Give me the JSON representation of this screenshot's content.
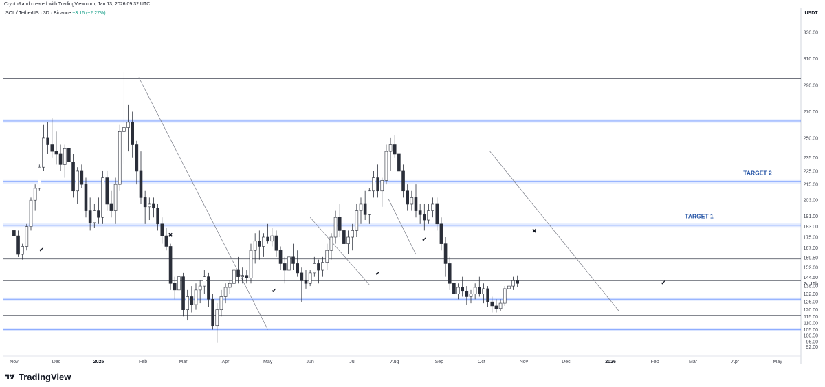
{
  "header": {
    "credit": "CryptoRand created with TradingView.com, Jan 13, 2026 09:32 UTC",
    "symbol": "SOL / TetherUS · 3D · Binance",
    "change": "+3.16 (+2.27%)"
  },
  "brand": {
    "name": "TradingView",
    "logo_icon": "tradingview-logo-icon"
  },
  "colors": {
    "up": "#ffffff",
    "down": "#2a2e39",
    "wick": "#2a2e39",
    "zone": "#2962ff",
    "target_text": "#1e4fa3",
    "grid": "#f0f3fa"
  },
  "chart_data": {
    "type": "candlestick",
    "currency_label": "USDT",
    "ylim": [
      86,
      340
    ],
    "price_ticks": [
      "330.00",
      "310.00",
      "290.00",
      "270.00",
      "250.00",
      "235.00",
      "225.00",
      "215.00",
      "203.00",
      "191.00",
      "183.00",
      "175.00",
      "167.00",
      "159.50",
      "152.00",
      "144.50",
      "138.00",
      "132.00",
      "126.00",
      "120.00",
      "115.00",
      "110.00",
      "105.00",
      "100.50",
      "96.00",
      "92.00"
    ],
    "last_price_label": "2d 15h",
    "x_labels": [
      {
        "label": "Nov",
        "t": 0
      },
      {
        "label": "Dec",
        "t": 10
      },
      {
        "label": "2025",
        "t": 20,
        "bold": true
      },
      {
        "label": "Feb",
        "t": 30.5
      },
      {
        "label": "Mar",
        "t": 40
      },
      {
        "label": "Apr",
        "t": 50
      },
      {
        "label": "May",
        "t": 60
      },
      {
        "label": "Jun",
        "t": 70
      },
      {
        "label": "Jul",
        "t": 80
      },
      {
        "label": "Aug",
        "t": 90
      },
      {
        "label": "Sep",
        "t": 100.5
      },
      {
        "label": "Oct",
        "t": 110.5
      },
      {
        "label": "Nov",
        "t": 120.5
      },
      {
        "label": "Dec",
        "t": 130.5
      },
      {
        "label": "2026",
        "t": 141,
        "bold": true
      },
      {
        "label": "Feb",
        "t": 151.5
      },
      {
        "label": "Mar",
        "t": 160.5
      },
      {
        "label": "Apr",
        "t": 170.5
      },
      {
        "label": "May",
        "t": 180.5
      }
    ],
    "horizontal_lines": [
      295,
      158.5,
      142,
      116
    ],
    "zones": [
      {
        "price": 263,
        "label": ""
      },
      {
        "price": 217,
        "label": "TARGET 2"
      },
      {
        "price": 184,
        "label": "TARGET 1"
      },
      {
        "price": 128,
        "label": ""
      },
      {
        "price": 105,
        "label": ""
      }
    ],
    "trendlines": [
      {
        "t1": 29.5,
        "p1": 296,
        "t2": 60,
        "p2": 105
      },
      {
        "t1": 70,
        "p1": 190,
        "t2": 84,
        "p2": 139
      },
      {
        "t1": 88.5,
        "p1": 204,
        "t2": 95,
        "p2": 162
      },
      {
        "t1": 112.5,
        "p1": 240,
        "t2": 143,
        "p2": 119
      }
    ],
    "markers": [
      {
        "t": 6.5,
        "p": 164,
        "symbol": "check"
      },
      {
        "t": 37,
        "p": 175,
        "symbol": "cross"
      },
      {
        "t": 61.5,
        "p": 133,
        "symbol": "check"
      },
      {
        "t": 86,
        "p": 146,
        "symbol": "check"
      },
      {
        "t": 97,
        "p": 172,
        "symbol": "check"
      },
      {
        "t": 123,
        "p": 178,
        "symbol": "cross"
      },
      {
        "t": 153.5,
        "p": 139,
        "symbol": "check"
      }
    ],
    "candles": [
      [
        180,
        186,
        172,
        176
      ],
      [
        176,
        180,
        160,
        162
      ],
      [
        162,
        170,
        158,
        168
      ],
      [
        168,
        185,
        165,
        183
      ],
      [
        183,
        205,
        180,
        203
      ],
      [
        203,
        215,
        195,
        212
      ],
      [
        212,
        230,
        210,
        228
      ],
      [
        228,
        260,
        225,
        250
      ],
      [
        250,
        262,
        238,
        245
      ],
      [
        245,
        265,
        235,
        240
      ],
      [
        240,
        255,
        230,
        238
      ],
      [
        238,
        245,
        225,
        230
      ],
      [
        230,
        245,
        220,
        242
      ],
      [
        242,
        250,
        228,
        232
      ],
      [
        232,
        238,
        205,
        210
      ],
      [
        210,
        228,
        200,
        225
      ],
      [
        225,
        230,
        212,
        215
      ],
      [
        215,
        220,
        190,
        195
      ],
      [
        195,
        205,
        180,
        186
      ],
      [
        186,
        200,
        182,
        195
      ],
      [
        195,
        205,
        185,
        190
      ],
      [
        190,
        225,
        185,
        220
      ],
      [
        220,
        225,
        195,
        200
      ],
      [
        200,
        210,
        190,
        195
      ],
      [
        195,
        220,
        185,
        215
      ],
      [
        215,
        260,
        210,
        255
      ],
      [
        255,
        300,
        230,
        258
      ],
      [
        258,
        275,
        240,
        262
      ],
      [
        262,
        270,
        235,
        245
      ],
      [
        245,
        248,
        215,
        225
      ],
      [
        225,
        240,
        200,
        205
      ],
      [
        205,
        210,
        185,
        198
      ],
      [
        198,
        205,
        188,
        200
      ],
      [
        200,
        205,
        190,
        197
      ],
      [
        197,
        200,
        180,
        185
      ],
      [
        185,
        190,
        170,
        176
      ],
      [
        176,
        182,
        165,
        168
      ],
      [
        168,
        170,
        135,
        140
      ],
      [
        140,
        145,
        128,
        135
      ],
      [
        135,
        150,
        130,
        145
      ],
      [
        145,
        148,
        115,
        120
      ],
      [
        120,
        135,
        112,
        130
      ],
      [
        130,
        138,
        118,
        124
      ],
      [
        124,
        140,
        120,
        135
      ],
      [
        135,
        142,
        125,
        138
      ],
      [
        138,
        150,
        132,
        145
      ],
      [
        145,
        148,
        122,
        128
      ],
      [
        128,
        132,
        105,
        108
      ],
      [
        108,
        125,
        95,
        120
      ],
      [
        120,
        135,
        115,
        130
      ],
      [
        130,
        140,
        125,
        137
      ],
      [
        137,
        142,
        132,
        140
      ],
      [
        140,
        155,
        135,
        150
      ],
      [
        150,
        160,
        140,
        145
      ],
      [
        145,
        152,
        140,
        146
      ],
      [
        146,
        150,
        140,
        144
      ],
      [
        144,
        170,
        140,
        165
      ],
      [
        165,
        178,
        155,
        172
      ],
      [
        172,
        180,
        158,
        168
      ],
      [
        168,
        178,
        160,
        175
      ],
      [
        175,
        185,
        170,
        172
      ],
      [
        172,
        182,
        168,
        176
      ],
      [
        176,
        180,
        160,
        165
      ],
      [
        165,
        168,
        150,
        155
      ],
      [
        155,
        160,
        140,
        150
      ],
      [
        150,
        165,
        145,
        160
      ],
      [
        160,
        170,
        150,
        155
      ],
      [
        155,
        165,
        145,
        148
      ],
      [
        148,
        152,
        126,
        142
      ],
      [
        142,
        150,
        136,
        140
      ],
      [
        140,
        150,
        138,
        148
      ],
      [
        148,
        160,
        145,
        155
      ],
      [
        155,
        158,
        140,
        150
      ],
      [
        150,
        160,
        145,
        156
      ],
      [
        156,
        170,
        150,
        165
      ],
      [
        165,
        178,
        158,
        175
      ],
      [
        175,
        195,
        170,
        190
      ],
      [
        190,
        200,
        175,
        180
      ],
      [
        180,
        185,
        165,
        170
      ],
      [
        170,
        180,
        162,
        175
      ],
      [
        175,
        185,
        165,
        180
      ],
      [
        180,
        200,
        175,
        195
      ],
      [
        195,
        205,
        185,
        200
      ],
      [
        200,
        210,
        188,
        192
      ],
      [
        192,
        212,
        185,
        210
      ],
      [
        210,
        225,
        205,
        220
      ],
      [
        220,
        230,
        205,
        210
      ],
      [
        210,
        220,
        198,
        218
      ],
      [
        218,
        245,
        215,
        240
      ],
      [
        240,
        250,
        225,
        245
      ],
      [
        245,
        252,
        235,
        238
      ],
      [
        238,
        245,
        220,
        225
      ],
      [
        225,
        230,
        205,
        210
      ],
      [
        210,
        215,
        195,
        200
      ],
      [
        200,
        210,
        195,
        205
      ],
      [
        205,
        215,
        190,
        195
      ],
      [
        195,
        200,
        185,
        192
      ],
      [
        192,
        200,
        180,
        188
      ],
      [
        188,
        200,
        185,
        195
      ],
      [
        195,
        205,
        190,
        200
      ],
      [
        200,
        205,
        180,
        185
      ],
      [
        185,
        190,
        165,
        170
      ],
      [
        170,
        175,
        145,
        155
      ],
      [
        155,
        160,
        135,
        140
      ],
      [
        140,
        145,
        128,
        132
      ],
      [
        132,
        140,
        128,
        137
      ],
      [
        137,
        145,
        130,
        134
      ],
      [
        134,
        138,
        124,
        130
      ],
      [
        130,
        135,
        125,
        132
      ],
      [
        132,
        140,
        128,
        137
      ],
      [
        137,
        145,
        130,
        132
      ],
      [
        132,
        140,
        125,
        136
      ],
      [
        136,
        138,
        122,
        126
      ],
      [
        126,
        130,
        118,
        123
      ],
      [
        123,
        128,
        118,
        121
      ],
      [
        121,
        128,
        119,
        125
      ],
      [
        125,
        138,
        123,
        136
      ],
      [
        136,
        140,
        130,
        138
      ],
      [
        138,
        145,
        135,
        142
      ],
      [
        142,
        146,
        137,
        140
      ]
    ]
  }
}
